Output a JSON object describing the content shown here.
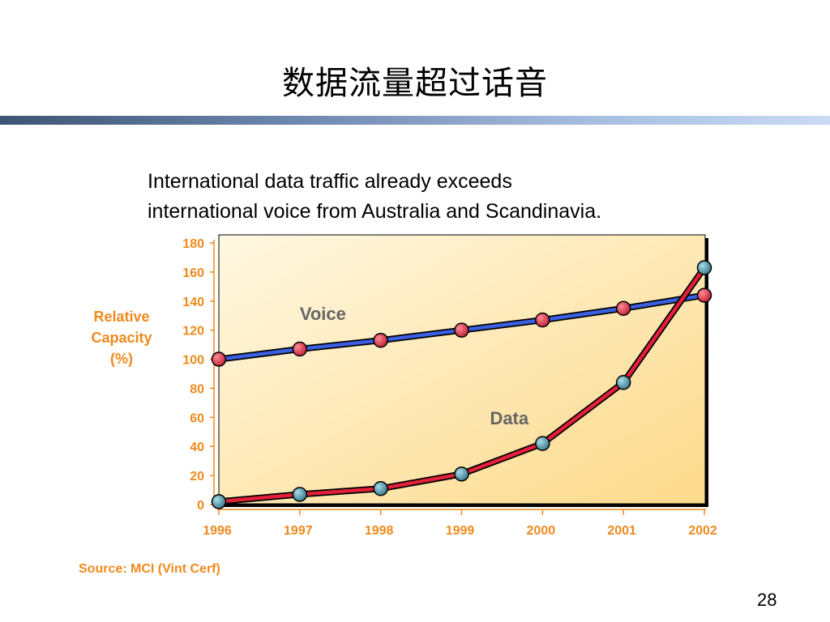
{
  "slide": {
    "title": "数据流量超过话音",
    "subtitle_line1": "International data traffic already exceeds",
    "subtitle_line2": "international voice from Australia and Scandinavia.",
    "ylabel_line1": "Relative",
    "ylabel_line2": "Capacity",
    "ylabel_line3": "(%)",
    "source": "Source: MCI (Vint Cerf)",
    "page_number": "28"
  },
  "colors": {
    "axis_text": "#ee8a1c",
    "voice_line": "#3a5fe0",
    "data_line": "#e3203a",
    "voice_marker": "#d83a4e",
    "data_marker": "#4f96a8",
    "plot_fill_light": "#fff8e2",
    "plot_fill_dark": "#fcd98a"
  },
  "chart_data": {
    "type": "line",
    "title": "",
    "xlabel": "",
    "ylabel": "Relative Capacity (%)",
    "categories": [
      "1996",
      "1997",
      "1998",
      "1999",
      "2000",
      "2001",
      "2002"
    ],
    "ylim": [
      0,
      180
    ],
    "yticks": [
      0,
      20,
      40,
      60,
      80,
      100,
      120,
      140,
      160,
      180
    ],
    "grid": false,
    "series": [
      {
        "name": "Voice",
        "values": [
          100,
          107,
          113,
          120,
          127,
          135,
          144
        ]
      },
      {
        "name": "Data",
        "values": [
          2,
          7,
          11,
          21,
          42,
          84,
          163
        ]
      }
    ]
  }
}
